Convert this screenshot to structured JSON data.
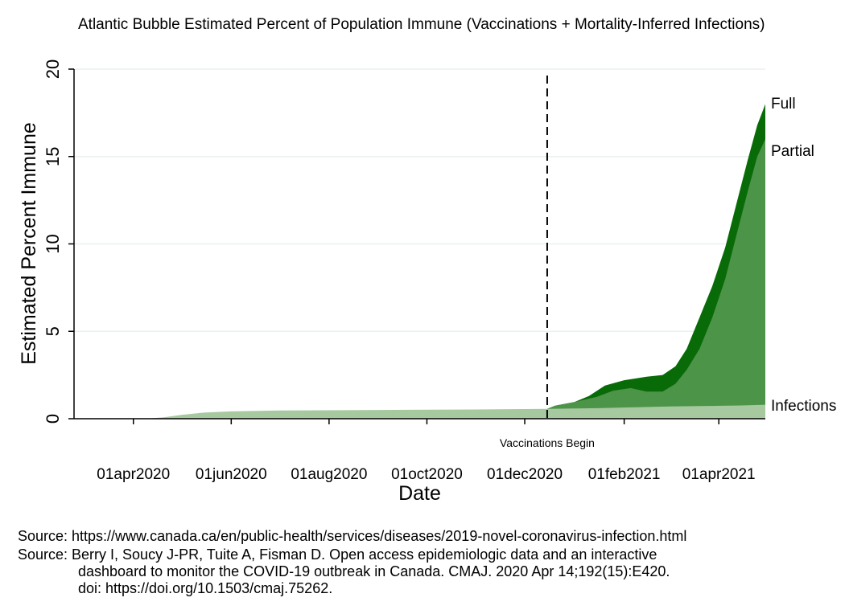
{
  "title": "Atlantic Bubble Estimated Percent of Population Immune (Vaccinations + Mortality-Inferred Infections)",
  "colors": {
    "infections": "#a6c9a0",
    "partial": "#4c9448",
    "full": "#086b08",
    "grid": "#e9f0f0",
    "axis": "#000000"
  },
  "chart_data": {
    "type": "area",
    "title": "Atlantic Bubble Estimated Percent of Population Immune (Vaccinations + Mortality-Inferred Infections)",
    "xlabel": "Date",
    "ylabel": "Estimated Percent Immune",
    "ylim": [
      0,
      20
    ],
    "yticks": [
      0,
      5,
      10,
      15,
      20
    ],
    "xlim": [
      "2020-02-24",
      "2021-04-30"
    ],
    "xticks": [
      {
        "date": "2020-04-01",
        "label": "01apr2020"
      },
      {
        "date": "2020-06-01",
        "label": "01jun2020"
      },
      {
        "date": "2020-08-01",
        "label": "01aug2020"
      },
      {
        "date": "2020-10-01",
        "label": "01oct2020"
      },
      {
        "date": "2020-12-01",
        "label": "01dec2020"
      },
      {
        "date": "2021-02-01",
        "label": "01feb2021"
      },
      {
        "date": "2021-04-01",
        "label": "01apr2021"
      }
    ],
    "annotation": {
      "date": "2020-12-15",
      "label": "Vaccinations Begin"
    },
    "legend": "series labels at right end of lines",
    "series": [
      {
        "name": "Infections",
        "key": "infections",
        "label": "Infections",
        "points": [
          [
            "2020-03-01",
            0.0
          ],
          [
            "2020-04-10",
            0.01
          ],
          [
            "2020-04-20",
            0.08
          ],
          [
            "2020-05-01",
            0.22
          ],
          [
            "2020-05-15",
            0.35
          ],
          [
            "2020-06-01",
            0.42
          ],
          [
            "2020-07-01",
            0.47
          ],
          [
            "2020-09-01",
            0.5
          ],
          [
            "2020-11-01",
            0.53
          ],
          [
            "2020-12-15",
            0.56
          ],
          [
            "2021-01-15",
            0.6
          ],
          [
            "2021-03-01",
            0.7
          ],
          [
            "2021-04-15",
            0.76
          ],
          [
            "2021-04-30",
            0.8
          ]
        ]
      },
      {
        "name": "Partial",
        "key": "partial",
        "label": "Partial",
        "points": [
          [
            "2020-12-15",
            0.56
          ],
          [
            "2020-12-20",
            0.75
          ],
          [
            "2021-01-01",
            0.95
          ],
          [
            "2021-01-15",
            1.25
          ],
          [
            "2021-01-25",
            1.6
          ],
          [
            "2021-02-05",
            1.75
          ],
          [
            "2021-02-15",
            1.55
          ],
          [
            "2021-02-25",
            1.55
          ],
          [
            "2021-03-05",
            2.0
          ],
          [
            "2021-03-12",
            2.8
          ],
          [
            "2021-03-20",
            4.0
          ],
          [
            "2021-03-28",
            5.8
          ],
          [
            "2021-04-05",
            8.0
          ],
          [
            "2021-04-12",
            10.5
          ],
          [
            "2021-04-19",
            13.0
          ],
          [
            "2021-04-25",
            15.0
          ],
          [
            "2021-04-30",
            16.0
          ]
        ]
      },
      {
        "name": "Full",
        "key": "full",
        "label": "Full",
        "points": [
          [
            "2020-12-15",
            0.56
          ],
          [
            "2020-12-20",
            0.75
          ],
          [
            "2021-01-01",
            0.95
          ],
          [
            "2021-01-10",
            1.3
          ],
          [
            "2021-01-20",
            1.9
          ],
          [
            "2021-02-01",
            2.2
          ],
          [
            "2021-02-15",
            2.4
          ],
          [
            "2021-02-25",
            2.5
          ],
          [
            "2021-03-05",
            3.0
          ],
          [
            "2021-03-12",
            4.0
          ],
          [
            "2021-03-20",
            5.8
          ],
          [
            "2021-03-28",
            7.6
          ],
          [
            "2021-04-05",
            9.8
          ],
          [
            "2021-04-12",
            12.3
          ],
          [
            "2021-04-19",
            14.8
          ],
          [
            "2021-04-25",
            16.8
          ],
          [
            "2021-04-30",
            18.0
          ]
        ]
      }
    ]
  },
  "sources": {
    "line1": "Source: https://www.canada.ca/en/public-health/services/diseases/2019-novel-coronavirus-infection.html",
    "line2": "Source: Berry I, Soucy J-PR, Tuite A, Fisman D. Open access epidemiologic data and an interactive",
    "line3": "dashboard to monitor the COVID-19 outbreak in Canada. CMAJ. 2020 Apr 14;192(15):E420.",
    "line4": "doi: https://doi.org/10.1503/cmaj.75262."
  }
}
